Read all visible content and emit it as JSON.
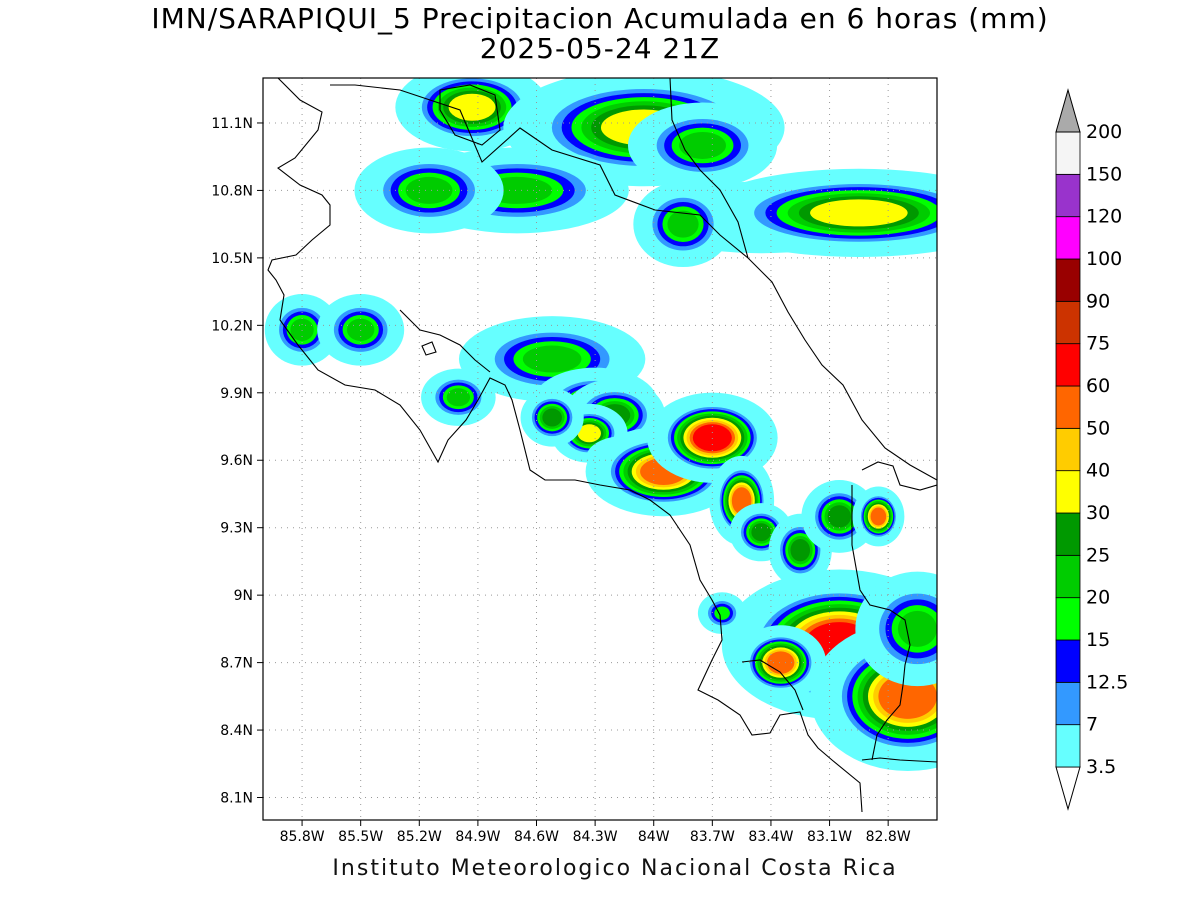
{
  "title": "IMN/SARAPIQUI_5 Precipitacion Acumulada en 6 horas (mm)",
  "valid_time": "2025-05-24 21Z",
  "footer": "Instituto Meteorologico Nacional Costa Rica",
  "map": {
    "lon_range": [
      -86.0,
      -82.55
    ],
    "lat_range": [
      8.0,
      11.3
    ],
    "x_ticks": [
      "85.8W",
      "85.5W",
      "85.2W",
      "84.9W",
      "84.6W",
      "84.3W",
      "84W",
      "83.7W",
      "83.4W",
      "83.1W",
      "82.8W"
    ],
    "x_tick_values": [
      -85.8,
      -85.5,
      -85.2,
      -84.9,
      -84.6,
      -84.3,
      -84.0,
      -83.7,
      -83.4,
      -83.1,
      -82.8
    ],
    "y_ticks": [
      "11.1N",
      "10.8N",
      "10.5N",
      "10.2N",
      "9.9N",
      "9.6N",
      "9.3N",
      "9N",
      "8.7N",
      "8.4N",
      "8.1N"
    ],
    "y_tick_values": [
      11.1,
      10.8,
      10.5,
      10.2,
      9.9,
      9.6,
      9.3,
      9.0,
      8.7,
      8.4,
      8.1
    ],
    "grid": true
  },
  "colorbar": {
    "labels": [
      "3.5",
      "7",
      "12.5",
      "15",
      "20",
      "25",
      "30",
      "40",
      "50",
      "60",
      "75",
      "90",
      "100",
      "120",
      "150",
      "200"
    ],
    "colors": [
      "#66ffff",
      "#3399ff",
      "#0000ff",
      "#00ff00",
      "#00cc00",
      "#009900",
      "#ffff00",
      "#ffcc00",
      "#ff6600",
      "#ff0000",
      "#cc3300",
      "#990000",
      "#ff00ff",
      "#9933cc",
      "#f5f5f5",
      "#aaaaaa"
    ]
  },
  "chart_data": {
    "type": "heatmap",
    "title": "IMN/SARAPIQUI_5 Precipitacion Acumulada en 6 horas (mm)",
    "subtitle": "2025-05-24 21Z",
    "units": "mm",
    "xlim": [
      -86.0,
      -82.55
    ],
    "ylim": [
      8.0,
      11.3
    ],
    "cells": [
      {
        "lon": -84.93,
        "lat": 11.17,
        "rx": 0.12,
        "ry": 0.06,
        "mm": 32
      },
      {
        "lon": -84.05,
        "lat": 11.08,
        "rx": 0.22,
        "ry": 0.08,
        "mm": 38
      },
      {
        "lon": -83.75,
        "lat": 11.0,
        "rx": 0.12,
        "ry": 0.06,
        "mm": 22
      },
      {
        "lon": -84.7,
        "lat": 10.8,
        "rx": 0.18,
        "ry": 0.06,
        "mm": 22
      },
      {
        "lon": -85.15,
        "lat": 10.8,
        "rx": 0.12,
        "ry": 0.06,
        "mm": 22
      },
      {
        "lon": -83.45,
        "lat": 10.68,
        "rx": 0.2,
        "ry": 0.05,
        "mm": 22
      },
      {
        "lon": -82.95,
        "lat": 10.7,
        "rx": 0.25,
        "ry": 0.06,
        "mm": 30
      },
      {
        "lon": -83.85,
        "lat": 10.65,
        "rx": 0.08,
        "ry": 0.06,
        "mm": 20
      },
      {
        "lon": -85.8,
        "lat": 10.18,
        "rx": 0.06,
        "ry": 0.05,
        "mm": 20
      },
      {
        "lon": -85.5,
        "lat": 10.18,
        "rx": 0.07,
        "ry": 0.05,
        "mm": 20
      },
      {
        "lon": -84.52,
        "lat": 10.05,
        "rx": 0.15,
        "ry": 0.06,
        "mm": 22
      },
      {
        "lon": -85.0,
        "lat": 9.88,
        "rx": 0.06,
        "ry": 0.04,
        "mm": 20
      },
      {
        "lon": -84.3,
        "lat": 9.85,
        "rx": 0.1,
        "ry": 0.05,
        "mm": 25
      },
      {
        "lon": -84.2,
        "lat": 9.8,
        "rx": 0.08,
        "ry": 0.05,
        "mm": 25
      },
      {
        "lon": -84.33,
        "lat": 9.72,
        "rx": 0.06,
        "ry": 0.04,
        "mm": 30
      },
      {
        "lon": -84.52,
        "lat": 9.79,
        "rx": 0.05,
        "ry": 0.04,
        "mm": 25
      },
      {
        "lon": -84.15,
        "lat": 9.61,
        "rx": 0.06,
        "ry": 0.03,
        "mm": 30
      },
      {
        "lon": -83.95,
        "lat": 9.55,
        "rx": 0.12,
        "ry": 0.06,
        "mm": 50
      },
      {
        "lon": -83.7,
        "lat": 9.7,
        "rx": 0.1,
        "ry": 0.06,
        "mm": 60
      },
      {
        "lon": -83.55,
        "lat": 9.42,
        "rx": 0.05,
        "ry": 0.06,
        "mm": 50
      },
      {
        "lon": -83.45,
        "lat": 9.28,
        "rx": 0.05,
        "ry": 0.04,
        "mm": 25
      },
      {
        "lon": -83.25,
        "lat": 9.2,
        "rx": 0.05,
        "ry": 0.05,
        "mm": 25
      },
      {
        "lon": -83.05,
        "lat": 9.35,
        "rx": 0.06,
        "ry": 0.05,
        "mm": 25
      },
      {
        "lon": -82.85,
        "lat": 9.35,
        "rx": 0.04,
        "ry": 0.04,
        "mm": 50
      },
      {
        "lon": -83.05,
        "lat": 8.78,
        "rx": 0.18,
        "ry": 0.1,
        "mm": 60
      },
      {
        "lon": -83.35,
        "lat": 8.7,
        "rx": 0.07,
        "ry": 0.05,
        "mm": 50
      },
      {
        "lon": -82.7,
        "lat": 8.55,
        "rx": 0.15,
        "ry": 0.1,
        "mm": 50
      },
      {
        "lon": -82.65,
        "lat": 8.85,
        "rx": 0.1,
        "ry": 0.08,
        "mm": 22
      },
      {
        "lon": -83.65,
        "lat": 8.92,
        "rx": 0.04,
        "ry": 0.03,
        "mm": 15
      }
    ]
  }
}
